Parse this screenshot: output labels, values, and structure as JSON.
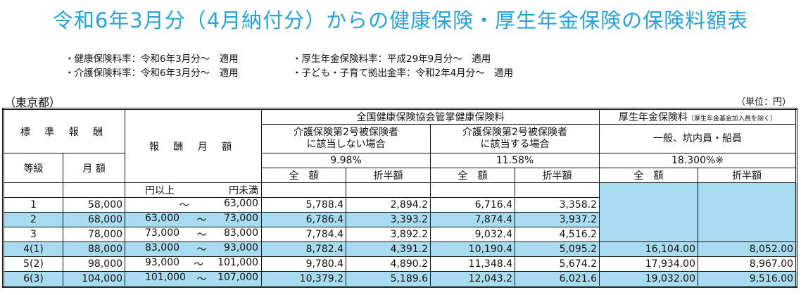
{
  "title": "令和6年3月分（4月納付分）からの健康保険・厚生年金保険の保険料額表",
  "notes": {
    "left": [
      "・健康保険料率：令和6年3月分～　適用",
      "・介護保険料率：令和6年3月分～　適用"
    ],
    "right": [
      "・厚生年金保険料率：平成29年9月分～　適用",
      "・子ども・子育て拠出金率：令和2年4月分～　適用"
    ]
  },
  "region": "（東京都）",
  "unit": "（単位：円）",
  "header": {
    "standard_pay": "標 準 報 酬",
    "grade": "等級",
    "monthly_amount": "月 額",
    "pay_range": "報 酬 月 額",
    "health": "全国健康保険協会管掌健康保険料",
    "pension": "厚生年金保険料",
    "pension_note": "（厚生年金基金加入員を除く）",
    "non_care": "介護保険第2号被保険者\nに該当しない場合",
    "care": "介護保険第2号被保険者\nに該当する場合",
    "pension_type": "一般、坑内員・船員",
    "rate_non_care": "9.98%",
    "rate_care": "11.58%",
    "rate_pension": "18.300%※",
    "full": "全　額",
    "half": "折半額",
    "yen_above": "円以上",
    "yen_below": "円未満"
  },
  "rows": [
    {
      "grade": "1",
      "monthly": "58,000",
      "from": "",
      "tilde": "～",
      "to": "63,000",
      "hf": "5,788.4",
      "hh": "2,894.2",
      "cf": "6,716.4",
      "ch": "3,358.2",
      "pf": "",
      "ph": ""
    },
    {
      "grade": "2",
      "monthly": "68,000",
      "from": "63,000",
      "tilde": "～",
      "to": "73,000",
      "hf": "6,786.4",
      "hh": "3,393.2",
      "cf": "7,874.4",
      "ch": "3,937.2",
      "pf": "",
      "ph": ""
    },
    {
      "grade": "3",
      "monthly": "78,000",
      "from": "73,000",
      "tilde": "～",
      "to": "83,000",
      "hf": "7,784.4",
      "hh": "3,892.2",
      "cf": "9,032.4",
      "ch": "4,516.2",
      "pf": "",
      "ph": ""
    },
    {
      "grade": "4(1)",
      "monthly": "88,000",
      "from": "83,000",
      "tilde": "～",
      "to": "93,000",
      "hf": "8,782.4",
      "hh": "4,391.2",
      "cf": "10,190.4",
      "ch": "5,095.2",
      "pf": "16,104.00",
      "ph": "8,052.00"
    },
    {
      "grade": "5(2)",
      "monthly": "98,000",
      "from": "93,000",
      "tilde": "～",
      "to": "101,000",
      "hf": "9,780.4",
      "hh": "4,890.2",
      "cf": "11,348.4",
      "ch": "5,674.2",
      "pf": "17,934.00",
      "ph": "8,967.00"
    },
    {
      "grade": "6(3)",
      "monthly": "104,000",
      "from": "101,000",
      "tilde": "～",
      "to": "107,000",
      "hf": "10,379.2",
      "hh": "5,189.6",
      "cf": "12,043.2",
      "ch": "6,021.6",
      "pf": "19,032.00",
      "ph": "9,516.00"
    }
  ],
  "colors": {
    "title": "#29a3d6",
    "highlight": "#a9dcf0"
  }
}
